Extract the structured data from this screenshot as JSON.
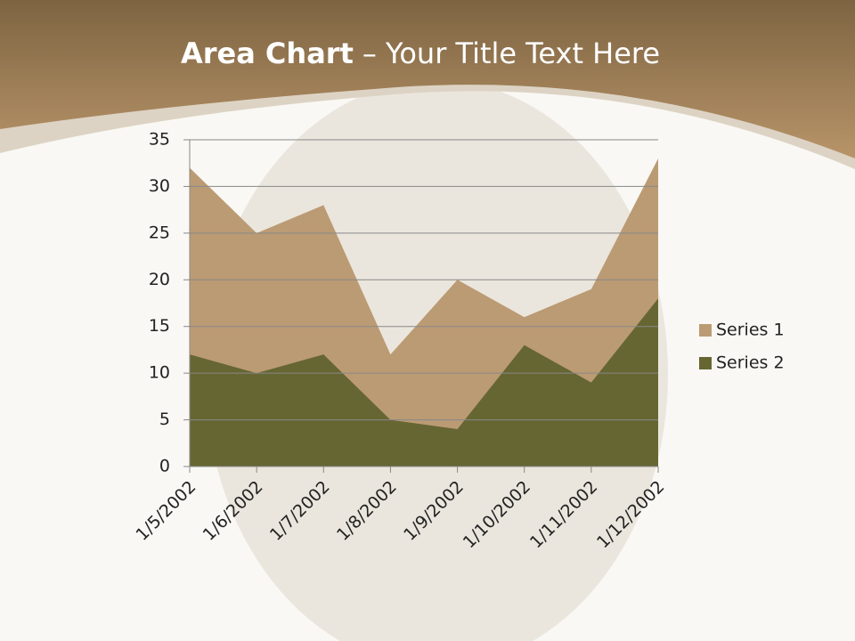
{
  "chart_data": {
    "type": "area",
    "title_emphasis": "Area Chart",
    "title": "– Your Title Text Here",
    "categories": [
      "1/5/2002",
      "1/6/2002",
      "1/7/2002",
      "1/8/2002",
      "1/9/2002",
      "1/10/2002",
      "1/11/2002",
      "1/12/2002"
    ],
    "series": [
      {
        "name": "Series 1",
        "color": "#bb9b74",
        "values": [
          32,
          25,
          28,
          12,
          20,
          16,
          19,
          33
        ]
      },
      {
        "name": "Series 2",
        "color": "#666633",
        "values": [
          12,
          10,
          12,
          5,
          4,
          13,
          9,
          18
        ]
      }
    ],
    "ylim": [
      0,
      35
    ],
    "yticks": [
      0,
      5,
      10,
      15,
      20,
      25,
      30,
      35
    ],
    "grid": true,
    "legend": "right"
  }
}
